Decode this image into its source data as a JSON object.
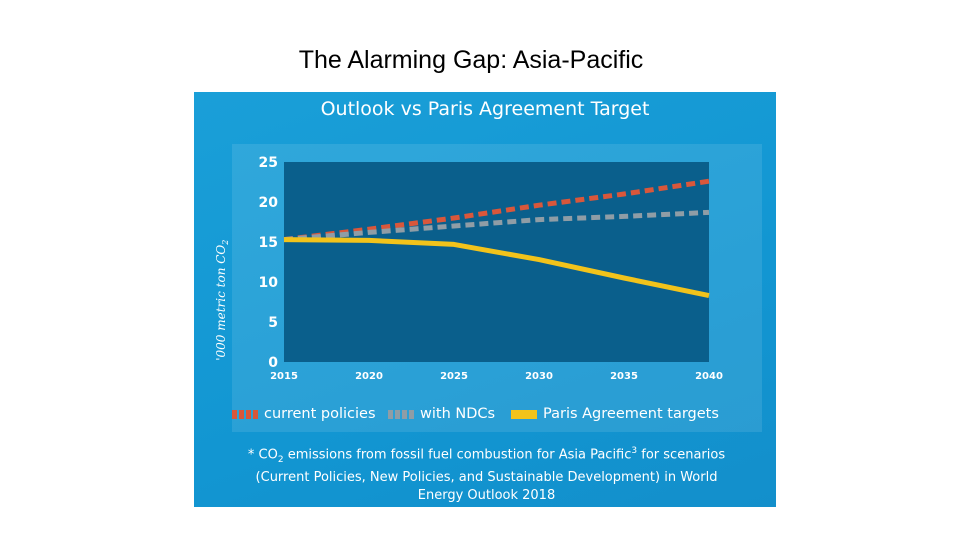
{
  "slide": {
    "title": "The Alarming Gap: Asia-Pacific"
  },
  "colors": {
    "background": "#1a9fd8",
    "plot_area": "#0a5f8c",
    "current_policies": "#d9573b",
    "with_ndcs": "#8f9da6",
    "paris": "#f2c31b"
  },
  "chart_data": {
    "type": "line",
    "title": "Outlook vs Paris Agreement Target",
    "ylabel": "'000 metric ton CO",
    "ylabel_sub": "2",
    "x": [
      2015,
      2020,
      2025,
      2030,
      2035,
      2040
    ],
    "xlim": [
      2015,
      2040
    ],
    "ylim": [
      0,
      25
    ],
    "yticks": [
      0,
      5,
      10,
      15,
      20,
      25
    ],
    "xticks": [
      2015,
      2020,
      2025,
      2030,
      2035,
      2040
    ],
    "series": [
      {
        "name": "current policies",
        "style": "dashed",
        "color": "#d9573b",
        "values": [
          15.3,
          16.6,
          18.0,
          19.6,
          21.0,
          22.6
        ]
      },
      {
        "name": "with NDCs",
        "style": "dashed",
        "color": "#8f9da6",
        "values": [
          15.3,
          16.2,
          17.0,
          17.8,
          18.2,
          18.7
        ]
      },
      {
        "name": "Paris Agreement targets",
        "style": "solid",
        "color": "#f2c31b",
        "values": [
          15.3,
          15.2,
          14.7,
          12.8,
          10.5,
          8.3
        ]
      }
    ],
    "legend_position": "bottom"
  },
  "footnote": {
    "line1_pre": "* CO",
    "line1_sub": "2",
    "line1_post": " emissions from fossil fuel combustion for Asia Pacific",
    "line1_sup": "3",
    "line1_end": " for scenarios",
    "line2": "(Current Policies, New Policies, and Sustainable Development) in World",
    "line3": "Energy Outlook 2018"
  }
}
